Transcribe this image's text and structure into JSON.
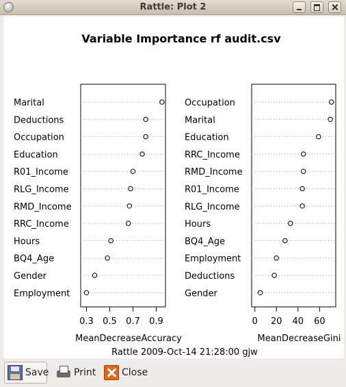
{
  "window": {
    "title": "Rattle: Plot 2"
  },
  "plot": {
    "footer": "Rattle 2009-Oct-14 21:28:00 gjw"
  },
  "chart_data": {
    "type": "scatter",
    "title": "Variable Importance rf audit.csv",
    "panels": [
      {
        "xlabel": "MeanDecreaseAccuracy",
        "xlim": [
          0.25,
          0.98
        ],
        "ticks": [
          0.3,
          0.5,
          0.7,
          0.9
        ],
        "tick_labels": [
          "0.3",
          "0.5",
          "0.7",
          "0.9"
        ],
        "categories": [
          "Marital",
          "Deductions",
          "Occupation",
          "Education",
          "R01_Income",
          "RLG_Income",
          "RMD_Income",
          "RRC_Income",
          "Hours",
          "BQ4_Age",
          "Gender",
          "Employment"
        ],
        "values": [
          0.95,
          0.81,
          0.81,
          0.78,
          0.7,
          0.68,
          0.67,
          0.66,
          0.51,
          0.48,
          0.37,
          0.3
        ]
      },
      {
        "xlabel": "MeanDecreaseGini",
        "xlim": [
          -3,
          75
        ],
        "ticks": [
          0,
          20,
          40,
          60
        ],
        "tick_labels": [
          "0",
          "20",
          "40",
          "60"
        ],
        "categories": [
          "Occupation",
          "Marital",
          "Education",
          "RRC_Income",
          "RMD_Income",
          "R01_Income",
          "RLG_Income",
          "Hours",
          "BQ4_Age",
          "Employment",
          "Deductions",
          "Gender"
        ],
        "values": [
          71,
          70,
          59,
          45,
          45,
          44,
          44,
          33,
          28,
          20,
          18,
          5
        ]
      }
    ],
    "grid": "dotted horizontal"
  },
  "toolbar": {
    "save_label": "Save",
    "print_label": "Print",
    "close_label": "Close"
  }
}
